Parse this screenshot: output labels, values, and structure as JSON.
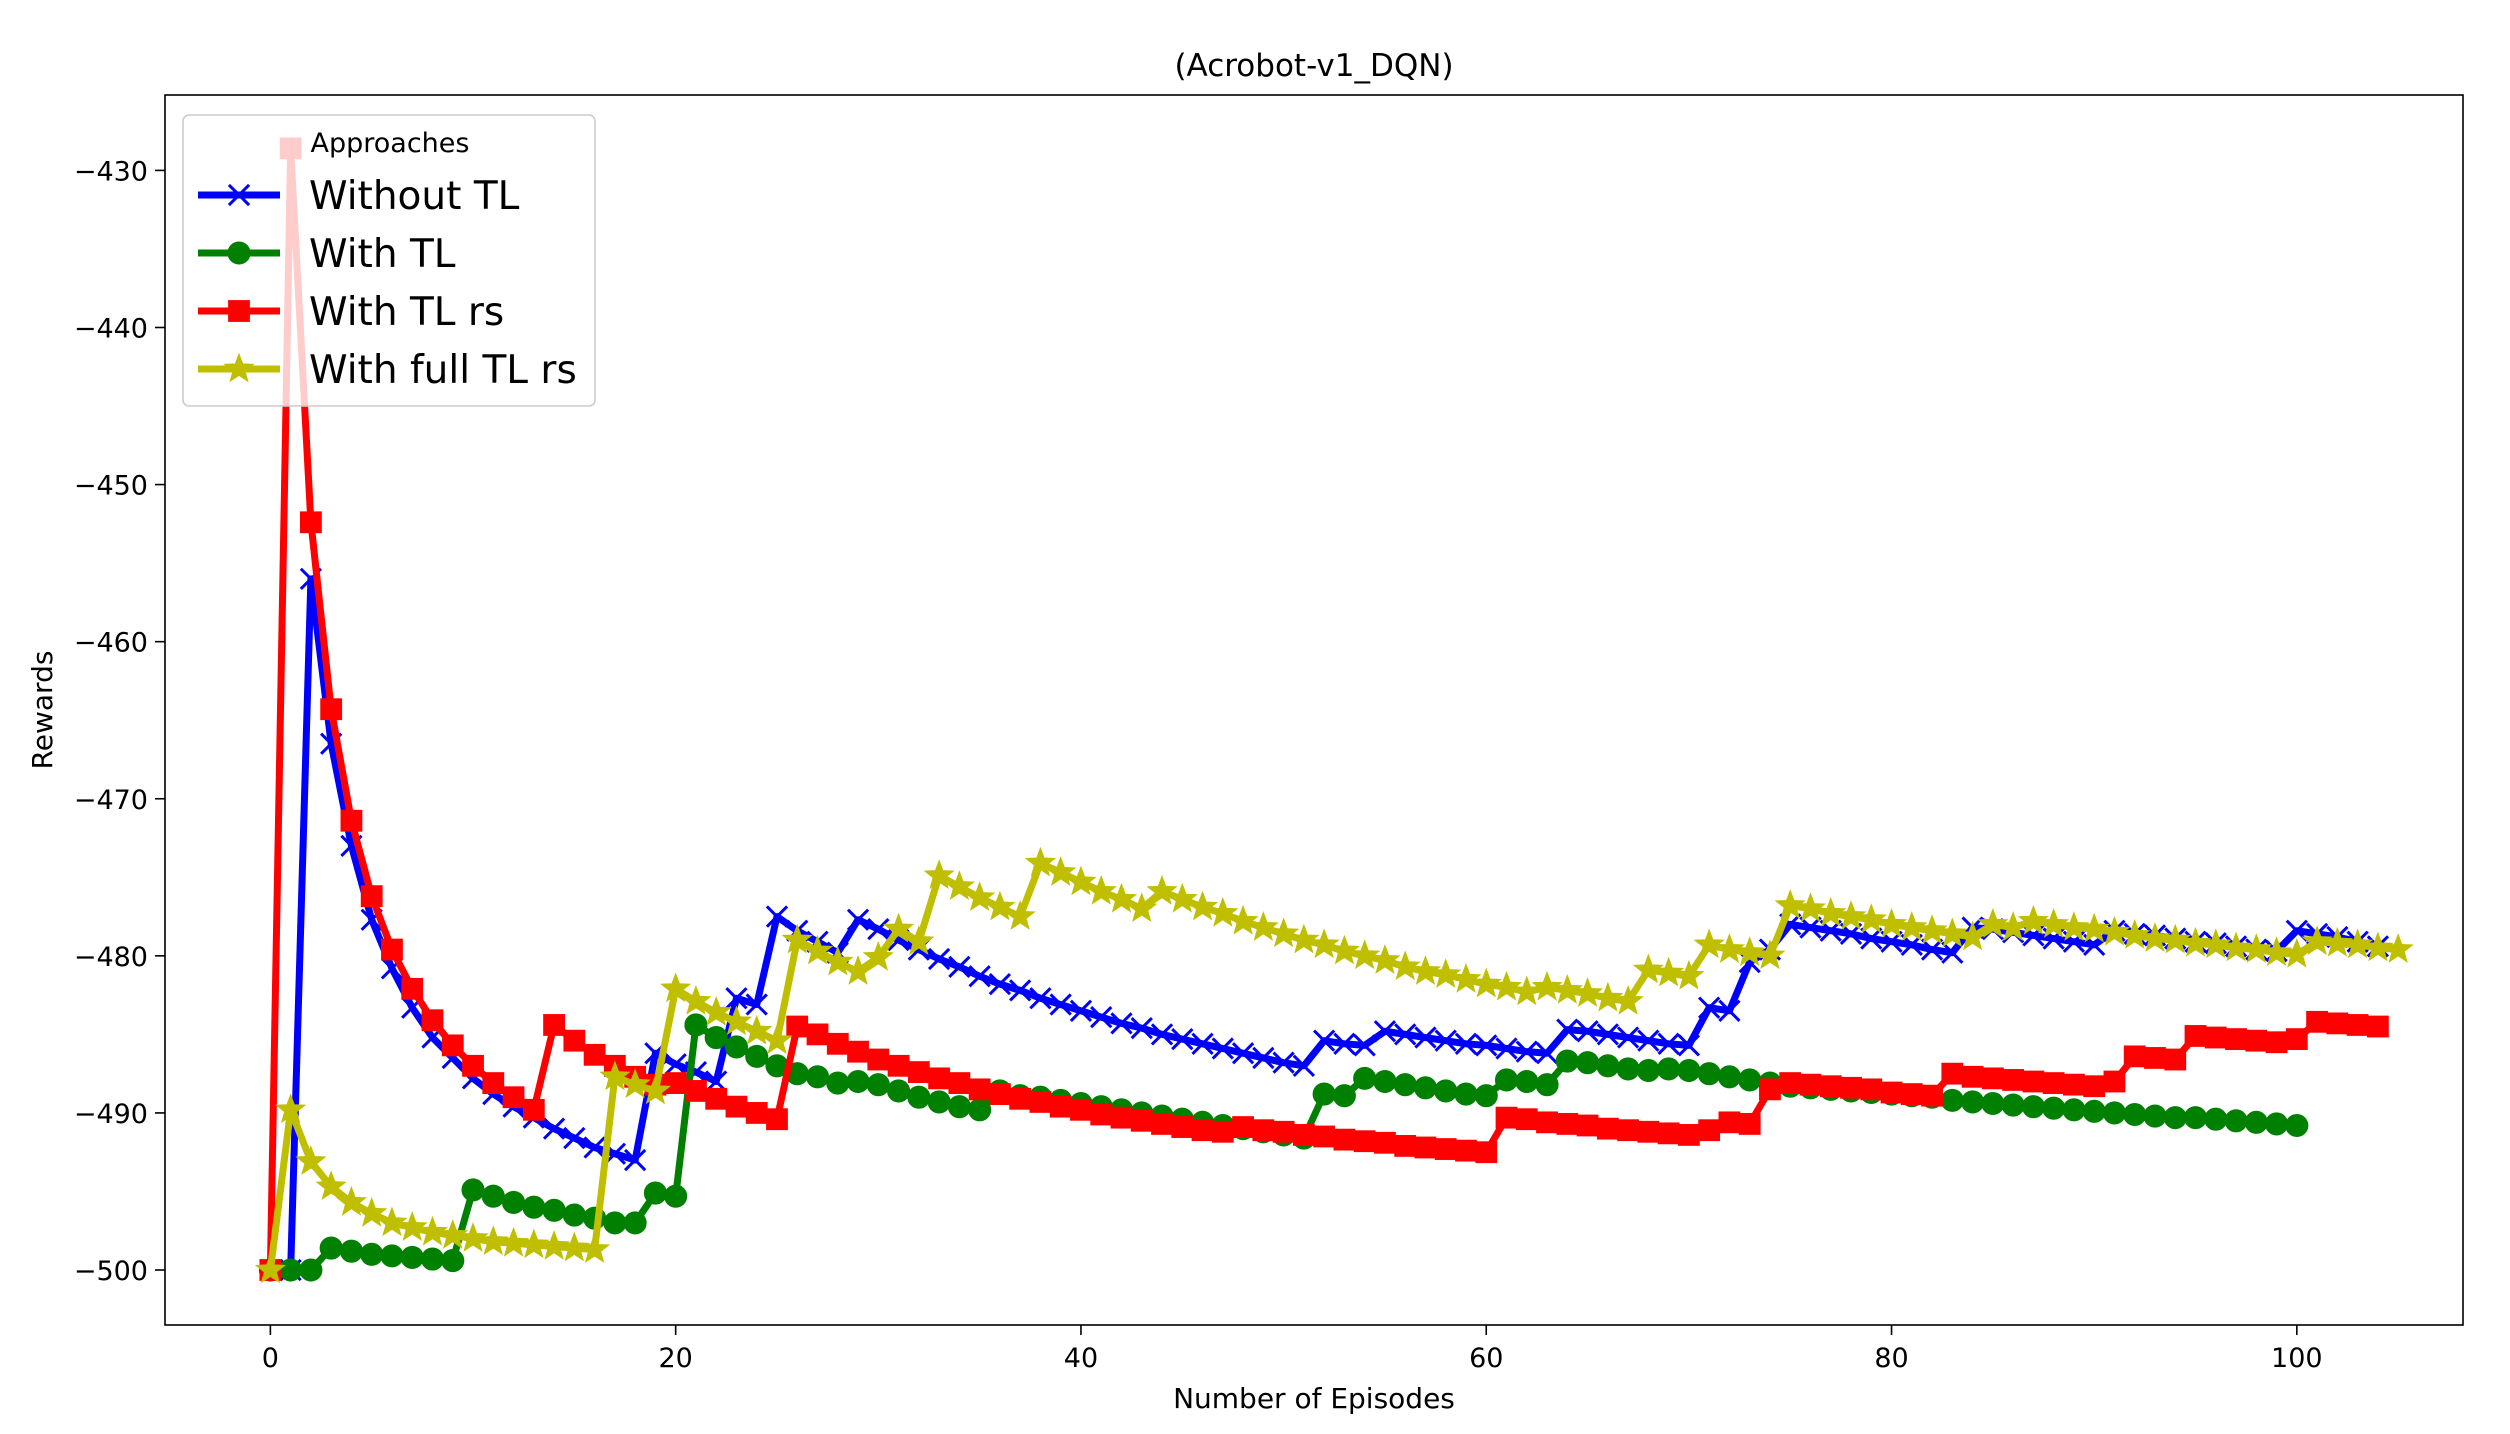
{
  "chart_data": {
    "type": "line",
    "title": "(Acrobot-v1_DQN)",
    "xlabel": "Number of Episodes",
    "ylabel": "Rewards",
    "xlim": [
      -5.2,
      108.2
    ],
    "ylim": [
      -503.5,
      -425.2
    ],
    "xticks": [
      0,
      20,
      40,
      60,
      80,
      100
    ],
    "yticks": [
      -500,
      -490,
      -480,
      -470,
      -460,
      -450,
      -440,
      -430
    ],
    "tick_labels_x": [
      "0",
      "20",
      "40",
      "60",
      "80",
      "100"
    ],
    "tick_labels_y": [
      "−500",
      "−490",
      "−480",
      "−470",
      "−460",
      "−450",
      "−440",
      "−430"
    ],
    "legend": {
      "title": "Approaches",
      "position": "top-left"
    },
    "grid": false,
    "series": [
      {
        "name": "Without TL",
        "color": "#0000ff",
        "marker": "x",
        "values": [
          -500.0,
          -500.0,
          -456.0,
          -466.5,
          -473.0,
          -477.7,
          -480.8,
          -483.3,
          -485.2,
          -486.5,
          -487.8,
          -488.8,
          -489.6,
          -490.3,
          -491.0,
          -491.6,
          -492.2,
          -492.6,
          -493.0,
          -486.2,
          -486.9,
          -487.4,
          -488.0,
          -482.7,
          -483.1,
          -477.5,
          -478.4,
          -479.1,
          -479.8,
          -477.7,
          -478.3,
          -479.0,
          -479.6,
          -480.2,
          -480.7,
          -481.3,
          -481.8,
          -482.2,
          -482.7,
          -483.1,
          -483.5,
          -483.9,
          -484.3,
          -484.6,
          -485.0,
          -485.3,
          -485.6,
          -485.9,
          -486.2,
          -486.5,
          -486.8,
          -487.0,
          -485.4,
          -485.6,
          -485.7,
          -484.8,
          -485.0,
          -485.2,
          -485.4,
          -485.6,
          -485.7,
          -485.9,
          -486.1,
          -486.2,
          -484.7,
          -484.8,
          -485.0,
          -485.2,
          -485.4,
          -485.6,
          -485.7,
          -483.3,
          -483.5,
          -480.4,
          -479.6,
          -478.0,
          -478.2,
          -478.4,
          -478.6,
          -478.9,
          -479.1,
          -479.3,
          -479.6,
          -479.8,
          -478.2,
          -478.3,
          -478.5,
          -478.7,
          -478.9,
          -479.1,
          -479.3,
          -478.4,
          -478.6,
          -478.7,
          -478.9,
          -479.1,
          -479.2,
          -479.4,
          -479.6,
          -479.7,
          -478.4,
          -478.6,
          -478.8,
          -479.1,
          -479.4
        ]
      },
      {
        "name": "With TL",
        "color": "#008000",
        "marker": "o",
        "values": [
          -500.0,
          -500.0,
          -500.0,
          -498.6,
          -498.8,
          -499.0,
          -499.1,
          -499.2,
          -499.3,
          -499.4,
          -494.9,
          -495.3,
          -495.7,
          -496.0,
          -496.2,
          -496.5,
          -496.7,
          -497.0,
          -497.0,
          -495.1,
          -495.3,
          -484.4,
          -485.2,
          -485.8,
          -486.4,
          -487.0,
          -487.5,
          -487.7,
          -488.1,
          -488.0,
          -488.2,
          -488.6,
          -489.0,
          -489.3,
          -489.6,
          -489.8,
          -488.6,
          -488.9,
          -489.0,
          -489.2,
          -489.4,
          -489.6,
          -489.8,
          -490.0,
          -490.2,
          -490.4,
          -490.6,
          -490.8,
          -491.0,
          -491.2,
          -491.4,
          -491.6,
          -488.8,
          -488.9,
          -487.8,
          -488.0,
          -488.2,
          -488.4,
          -488.6,
          -488.8,
          -488.9,
          -487.9,
          -488.0,
          -488.2,
          -486.7,
          -486.8,
          -487.0,
          -487.2,
          -487.3,
          -487.2,
          -487.3,
          -487.5,
          -487.7,
          -487.9,
          -488.1,
          -488.3,
          -488.4,
          -488.5,
          -488.6,
          -488.7,
          -488.8,
          -488.9,
          -489.0,
          -489.2,
          -489.3,
          -489.4,
          -489.5,
          -489.6,
          -489.7,
          -489.8,
          -489.9,
          -490.0,
          -490.1,
          -490.2,
          -490.3,
          -490.3,
          -490.4,
          -490.5,
          -490.6,
          -490.7,
          -490.8
        ]
      },
      {
        "name": "With TL rs",
        "color": "#ff0000",
        "marker": "s",
        "values": [
          -500.0,
          -428.6,
          -452.4,
          -464.3,
          -471.4,
          -476.2,
          -479.6,
          -482.1,
          -484.1,
          -485.7,
          -487.0,
          -488.1,
          -489.0,
          -489.8,
          -484.4,
          -485.4,
          -486.3,
          -487.0,
          -487.7,
          -488.2,
          -488.1,
          -488.6,
          -489.1,
          -489.6,
          -490.0,
          -490.4,
          -484.5,
          -485.0,
          -485.6,
          -486.1,
          -486.6,
          -487.0,
          -487.4,
          -487.8,
          -488.1,
          -488.5,
          -488.8,
          -489.1,
          -489.3,
          -489.6,
          -489.8,
          -490.1,
          -490.3,
          -490.5,
          -490.7,
          -490.9,
          -491.1,
          -491.2,
          -490.9,
          -491.1,
          -491.2,
          -491.4,
          -491.5,
          -491.7,
          -491.8,
          -491.9,
          -492.1,
          -492.2,
          -492.3,
          -492.4,
          -492.5,
          -490.3,
          -490.4,
          -490.6,
          -490.7,
          -490.8,
          -491.0,
          -491.1,
          -491.2,
          -491.3,
          -491.4,
          -491.1,
          -490.6,
          -490.7,
          -488.5,
          -488.1,
          -488.2,
          -488.3,
          -488.4,
          -488.5,
          -488.7,
          -488.8,
          -488.9,
          -487.5,
          -487.7,
          -487.8,
          -487.9,
          -488.0,
          -488.1,
          -488.2,
          -488.3,
          -488.0,
          -486.4,
          -486.5,
          -486.6,
          -485.1,
          -485.2,
          -485.3,
          -485.4,
          -485.5,
          -485.3,
          -484.2,
          -484.3,
          -484.4,
          -484.5
        ]
      },
      {
        "name": "With full TL rs",
        "color": "#bfbf00",
        "marker": "*",
        "values": [
          -500.0,
          -489.8,
          -493.1,
          -494.7,
          -495.7,
          -496.4,
          -497.0,
          -497.3,
          -497.6,
          -497.8,
          -498.0,
          -498.2,
          -498.3,
          -498.4,
          -498.5,
          -498.6,
          -498.7,
          -487.7,
          -488.2,
          -488.6,
          -482.1,
          -482.9,
          -483.6,
          -484.2,
          -484.8,
          -485.4,
          -479.0,
          -479.7,
          -480.4,
          -481.0,
          -480.1,
          -478.3,
          -479.1,
          -474.9,
          -475.6,
          -476.3,
          -476.9,
          -477.5,
          -474.1,
          -474.7,
          -475.3,
          -475.9,
          -476.4,
          -477.0,
          -475.9,
          -476.4,
          -476.9,
          -477.3,
          -477.8,
          -478.2,
          -478.6,
          -479.0,
          -479.3,
          -479.7,
          -480.0,
          -480.3,
          -480.7,
          -481.0,
          -481.2,
          -481.5,
          -481.8,
          -482.0,
          -482.3,
          -482.0,
          -482.2,
          -482.4,
          -482.7,
          -482.9,
          -480.9,
          -481.1,
          -481.3,
          -479.3,
          -479.6,
          -479.8,
          -480.0,
          -476.8,
          -477.0,
          -477.3,
          -477.5,
          -477.7,
          -478.0,
          -478.2,
          -478.4,
          -478.6,
          -478.8,
          -478.0,
          -478.2,
          -477.8,
          -478.0,
          -478.2,
          -478.3,
          -478.5,
          -478.7,
          -478.9,
          -479.0,
          -479.2,
          -479.3,
          -479.5,
          -479.6,
          -479.8,
          -479.9,
          -479.1,
          -479.2,
          -479.3,
          -479.5,
          -479.6
        ]
      }
    ]
  }
}
